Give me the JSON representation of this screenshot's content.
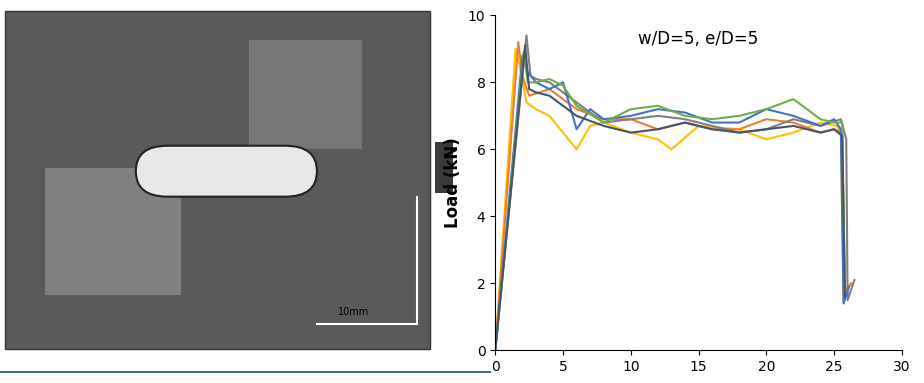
{
  "chart_data": {
    "type": "line",
    "title": "w/D=5, e/D=5",
    "y_label": "Load (kN)",
    "xlim": [
      0,
      30
    ],
    "xticks": [
      0,
      5,
      10,
      15,
      20,
      25,
      30
    ],
    "ylim": [
      0,
      10
    ],
    "yticks": [
      0,
      2,
      4,
      6,
      8,
      10
    ],
    "grid": false,
    "series": [
      {
        "color": "#ffc000",
        "x": [
          0,
          1.5,
          1.8,
          2.3,
          3,
          4,
          5,
          6,
          7,
          8,
          10,
          12,
          13,
          15,
          18,
          20,
          22,
          24,
          25.2,
          25.5,
          25.7,
          26.2
        ],
        "values": [
          0,
          9.0,
          8.5,
          7.4,
          7.2,
          7.0,
          6.5,
          6.0,
          6.7,
          6.8,
          6.5,
          6.3,
          6.0,
          6.7,
          6.6,
          6.3,
          6.5,
          6.8,
          6.7,
          6.5,
          1.5,
          2.0
        ]
      },
      {
        "color": "#ed7d31",
        "x": [
          0,
          1.7,
          2.0,
          2.5,
          4,
          6,
          8,
          10,
          12,
          14,
          16,
          18,
          20,
          22,
          24,
          25,
          25.6,
          25.8,
          26.3
        ],
        "values": [
          0,
          9.2,
          8.2,
          7.6,
          7.8,
          7.2,
          6.9,
          6.9,
          6.6,
          6.8,
          6.6,
          6.6,
          6.9,
          6.8,
          6.5,
          6.6,
          6.5,
          1.8,
          2.0
        ]
      },
      {
        "color": "#7f7f7f",
        "x": [
          0,
          2.3,
          2.6,
          3,
          4,
          6,
          8,
          10,
          12,
          14,
          16,
          18,
          20,
          22,
          24,
          25.5,
          25.9,
          26.0,
          26.5
        ],
        "values": [
          0,
          9.4,
          8.2,
          8.1,
          8.0,
          7.4,
          6.8,
          6.9,
          7.0,
          6.9,
          6.7,
          6.5,
          6.6,
          6.9,
          6.7,
          6.9,
          6.3,
          1.5,
          2.1
        ]
      },
      {
        "color": "#4472c4",
        "x": [
          0,
          2.0,
          2.4,
          3,
          4,
          5,
          6,
          7,
          8,
          10,
          12,
          14,
          16,
          18,
          20,
          22,
          24,
          25,
          25.5,
          25.7,
          26.1
        ],
        "values": [
          0,
          8.8,
          8.3,
          8.0,
          7.8,
          8.0,
          6.6,
          7.2,
          6.9,
          7.0,
          7.2,
          7.1,
          6.8,
          6.8,
          7.2,
          7.0,
          6.7,
          6.9,
          6.6,
          1.4,
          1.9
        ]
      },
      {
        "color": "#70ad47",
        "x": [
          0,
          2.1,
          2.4,
          3,
          4,
          5,
          6,
          8,
          10,
          12,
          14,
          16,
          18,
          20,
          22,
          24,
          25,
          25.6,
          25.8
        ],
        "values": [
          0,
          8.9,
          8.0,
          8.0,
          8.1,
          7.9,
          7.3,
          6.8,
          7.2,
          7.3,
          7.0,
          6.9,
          7.0,
          7.2,
          7.5,
          6.9,
          6.8,
          6.8,
          1.6
        ]
      },
      {
        "color": "#44546a",
        "x": [
          0,
          2.2,
          2.5,
          3,
          4,
          6,
          8,
          10,
          12,
          14,
          16,
          18,
          20,
          22,
          24,
          25,
          25.6,
          25.8
        ],
        "values": [
          0,
          9.1,
          7.8,
          7.7,
          7.6,
          7.0,
          6.7,
          6.5,
          6.6,
          6.8,
          6.6,
          6.5,
          6.6,
          6.7,
          6.5,
          6.6,
          6.4,
          1.6
        ]
      }
    ]
  },
  "photo": {
    "scale_bar_label": "10mm"
  }
}
